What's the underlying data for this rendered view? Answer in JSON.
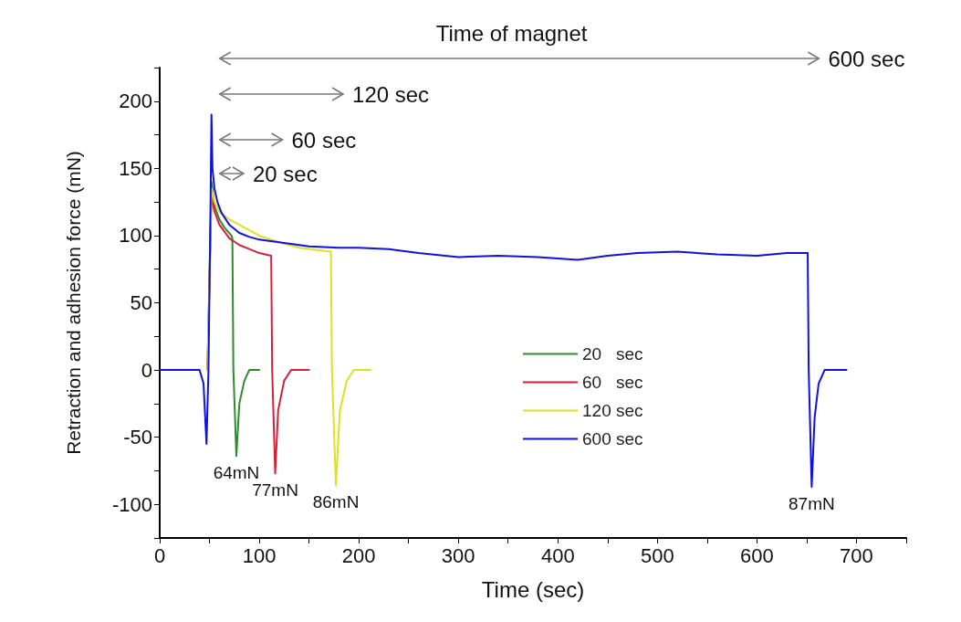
{
  "chart_data": {
    "type": "line",
    "xlabel": "Time (sec)",
    "ylabel": "Retraction and adhesion force (mN)",
    "xlim": [
      0,
      750
    ],
    "ylim": [
      -125,
      225
    ],
    "xticks": [
      0,
      {
        "value": 50,
        "label": null
      },
      100,
      {
        "value": 150,
        "label": null
      },
      200,
      {
        "value": 250,
        "label": null
      },
      300,
      {
        "value": 350,
        "label": null
      },
      400,
      {
        "value": 450,
        "label": null
      },
      500,
      {
        "value": 550,
        "label": null
      },
      600,
      {
        "value": 650,
        "label": null
      },
      700,
      {
        "value": 750,
        "label": null
      }
    ],
    "yticks": [
      {
        "value": -125,
        "label": null
      },
      -100,
      {
        "value": -75,
        "label": null
      },
      -50,
      {
        "value": -25,
        "label": null
      },
      0,
      {
        "value": 25,
        "label": null
      },
      50,
      {
        "value": 75,
        "label": null
      },
      100,
      {
        "value": 125,
        "label": null
      },
      150,
      {
        "value": 175,
        "label": null
      },
      200,
      {
        "value": 225,
        "label": null
      }
    ],
    "grid": false,
    "legend": "bottom right",
    "marker": "none",
    "line_style": "solid",
    "series": [
      {
        "name": "20   sec",
        "color": "#2e8b2e",
        "x": [
          48,
          52,
          55,
          60,
          65,
          72,
          73,
          74,
          77,
          80,
          85,
          90,
          100
        ],
        "values": [
          0,
          140,
          122,
          112,
          106,
          100,
          98,
          0,
          -64,
          -25,
          -8,
          0,
          0
        ]
      },
      {
        "name": "60   sec",
        "color": "#d4213a",
        "x": [
          48,
          52,
          55,
          60,
          70,
          80,
          90,
          100,
          112,
          113,
          116,
          119,
          125,
          132,
          150
        ],
        "values": [
          0,
          130,
          118,
          108,
          98,
          93,
          90,
          87,
          85,
          0,
          -77,
          -30,
          -8,
          0,
          0
        ]
      },
      {
        "name": "120 sec",
        "color": "#e0e020",
        "x": [
          48,
          52,
          55,
          60,
          70,
          80,
          100,
          120,
          140,
          160,
          172,
          173,
          177,
          181,
          188,
          195,
          212
        ],
        "values": [
          0,
          135,
          125,
          118,
          112,
          108,
          100,
          95,
          91,
          89,
          88,
          0,
          -86,
          -30,
          -8,
          0,
          0
        ]
      },
      {
        "name": "600 sec",
        "color": "#1010e0",
        "x": [
          0,
          40,
          44,
          47,
          49,
          51,
          52,
          53,
          55,
          58,
          62,
          70,
          80,
          90,
          100,
          120,
          150,
          180,
          200,
          230,
          260,
          300,
          340,
          380,
          420,
          450,
          480,
          520,
          560,
          600,
          630,
          651,
          652,
          655,
          658,
          662,
          668,
          690
        ],
        "values": [
          0,
          0,
          -10,
          -55,
          0,
          120,
          190,
          150,
          135,
          125,
          117,
          108,
          102,
          99,
          97,
          95,
          92,
          91,
          91,
          90,
          87,
          84,
          85,
          84,
          82,
          85,
          87,
          88,
          86,
          85,
          87,
          87,
          0,
          -87,
          -35,
          -10,
          0,
          0
        ]
      }
    ],
    "annotations": [
      "Time of magnet",
      "600 sec",
      "120 sec",
      "60 sec",
      "20 sec",
      "64mN",
      "77mN",
      "86mN",
      "87mN"
    ]
  }
}
